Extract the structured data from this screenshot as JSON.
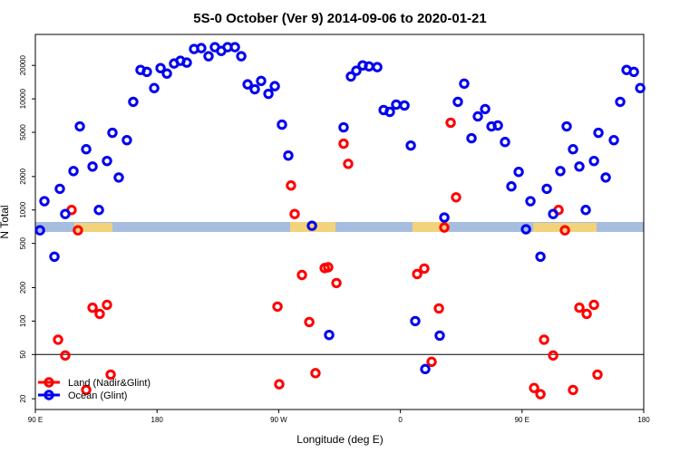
{
  "chart_data": {
    "type": "scatter",
    "title": "5S-0 October (Ver 9)   2014-09-06 to 2020-01-21",
    "xlabel": "Longitude (deg E)",
    "ylabel": "N Total",
    "xlim": [
      90,
      540
    ],
    "ylim": [
      16,
      38000
    ],
    "log_y": true,
    "xticks": [
      {
        "value": 90,
        "label": "90 E"
      },
      {
        "value": 180,
        "label": "180"
      },
      {
        "value": 270,
        "label": "90 W"
      },
      {
        "value": 360,
        "label": "0"
      },
      {
        "value": 450,
        "label": "90 E"
      },
      {
        "value": 540,
        "label": "180"
      }
    ],
    "yticks": [
      20,
      50,
      100,
      200,
      500,
      1000,
      2000,
      5000,
      10000,
      20000
    ],
    "hline": 50,
    "legend": "lower left",
    "series": [
      {
        "name": "Land (Nadir&Glint)",
        "color": "#ff0000",
        "x": [
          106.8,
          112.1,
          116.8,
          121.5,
          127.6,
          132.3,
          137.6,
          143,
          145.7,
          269.1,
          270.4,
          279.1,
          281.8,
          287.2,
          292.6,
          297.2,
          304,
          306.6,
          312.7,
          318,
          321.4,
          372.4,
          377.7,
          383.1,
          388.5,
          392.5,
          397.2,
          401.2,
          458.9,
          463.6,
          466.3,
          473,
          477,
          481.7,
          487.7,
          492.4,
          497.8,
          503.2,
          505.8
        ],
        "values": [
          68,
          49,
          1000,
          656,
          24,
          132,
          116,
          140,
          33,
          135,
          27,
          1660,
          920,
          260,
          98,
          34,
          300,
          305,
          220,
          3950,
          2600,
          265,
          297,
          43,
          130,
          695,
          6100,
          1300,
          25,
          22,
          68,
          49,
          1000,
          656,
          24,
          132,
          116,
          140,
          33
        ]
      },
      {
        "name": "Ocean (Glint)",
        "color": "#0000ee",
        "x": [
          93.4,
          96.7,
          104.1,
          108.1,
          112.1,
          118.2,
          122.9,
          127.6,
          132.3,
          137,
          143,
          147,
          151.7,
          157.7,
          162.4,
          167.8,
          172.5,
          177.9,
          182.6,
          187.3,
          192.6,
          197.3,
          202,
          207.4,
          212.7,
          218.1,
          222.8,
          227.5,
          232.2,
          237.6,
          242.3,
          247,
          252.3,
          257,
          262.4,
          267.1,
          272.4,
          277.1,
          294.6,
          307.3,
          318,
          323.4,
          327.4,
          332.1,
          336.8,
          342.9,
          347.6,
          352.2,
          356.9,
          363,
          367.7,
          371,
          378.4,
          392.5,
          389.1,
          402.5,
          407.2,
          412.6,
          417.3,
          422.7,
          427.4,
          432.1,
          437.4,
          442.1,
          447.5,
          452.9,
          456.2,
          463.6,
          468.3,
          473,
          478.3,
          483,
          487.7,
          492.4,
          497.1,
          503.2,
          506.5,
          511.9,
          517.9,
          522.6,
          527.3,
          532.7,
          537.4
        ],
        "values": [
          656,
          1200,
          380,
          1550,
          920,
          2240,
          5650,
          3520,
          2460,
          1000,
          2760,
          4950,
          1960,
          4250,
          9400,
          18200,
          17500,
          12500,
          18900,
          16900,
          20800,
          22000,
          21200,
          28100,
          28600,
          24200,
          29200,
          27000,
          29200,
          29200,
          24200,
          13500,
          12200,
          14500,
          11100,
          13000,
          5860,
          3090,
          721,
          75,
          5540,
          15900,
          17900,
          20000,
          19600,
          19300,
          7930,
          7640,
          8880,
          8710,
          3800,
          100,
          37,
          855,
          74,
          9400,
          13700,
          4420,
          6950,
          8090,
          5650,
          5760,
          4090,
          1630,
          2200,
          670,
          1200,
          380,
          1550,
          920,
          2240,
          5650,
          3520,
          2460,
          1000,
          2760,
          4950,
          1960,
          4250,
          9400,
          18200,
          17500,
          12500
        ]
      }
    ]
  }
}
